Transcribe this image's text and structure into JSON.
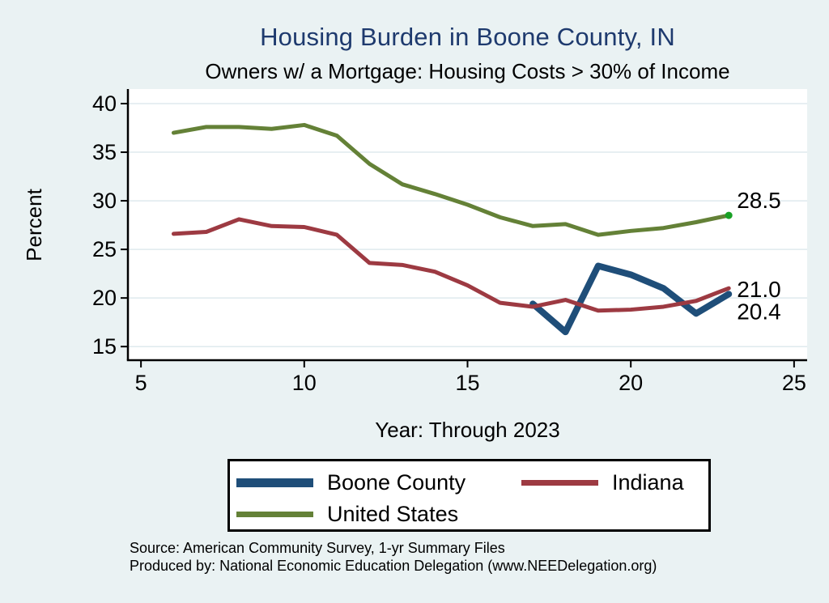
{
  "title": "Housing Burden in Boone County, IN",
  "subtitle": "Owners w/ a Mortgage: Housing Costs > 30% of Income",
  "source": {
    "line1": "Source: American Community Survey, 1-yr Summary Files",
    "line2": "Produced by: National Economic Education Delegation (www.NEEDelegation.org)"
  },
  "colors": {
    "background": "#eaf2f3",
    "plot_bg": "#ffffff",
    "grid": "#dfeaee",
    "axis": "#000000",
    "title": "#1e3a6e",
    "text": "#000000",
    "endpoint_marker": "#18a024"
  },
  "chart_data": {
    "type": "line",
    "title": "Housing Burden in Boone County, IN",
    "subtitle": "Owners w/ a Mortgage: Housing Costs > 30% of Income",
    "xlabel": "Year: Through 2023",
    "ylabel": "Percent",
    "xlim": [
      4.6,
      25.4
    ],
    "ylim": [
      13.6,
      41.5
    ],
    "xticks": [
      5,
      10,
      15,
      20,
      25
    ],
    "yticks": [
      15,
      20,
      25,
      30,
      35,
      40
    ],
    "grid": "horizontal",
    "legend_position": "bottom",
    "x_meaning": "ACS survey year, 6 = 2006 ... 23 = 2023",
    "series": [
      {
        "name": "Boone County",
        "color": "#1f4e79",
        "width": 8,
        "x": [
          17,
          18,
          19,
          20,
          21,
          22,
          23
        ],
        "values": [
          19.4,
          16.5,
          23.3,
          22.4,
          21.0,
          18.4,
          20.4
        ],
        "end_label": "20.4",
        "end_label_dy": 22,
        "end_marker": false
      },
      {
        "name": "Indiana",
        "color": "#9d3a42",
        "width": 5,
        "x": [
          6,
          7,
          8,
          9,
          10,
          11,
          12,
          13,
          14,
          15,
          16,
          17,
          18,
          19,
          20,
          21,
          22,
          23
        ],
        "values": [
          26.6,
          26.8,
          28.1,
          27.4,
          27.3,
          26.5,
          23.6,
          23.4,
          22.7,
          21.3,
          19.5,
          19.1,
          19.8,
          18.7,
          18.8,
          19.1,
          19.7,
          21.0
        ],
        "end_label": "21.0",
        "end_label_dy": 2,
        "end_marker": false
      },
      {
        "name": "United States",
        "color": "#648137",
        "width": 5,
        "x": [
          6,
          7,
          8,
          9,
          10,
          11,
          12,
          13,
          14,
          15,
          16,
          17,
          18,
          19,
          20,
          21,
          22,
          23
        ],
        "values": [
          37.0,
          37.6,
          37.6,
          37.4,
          37.8,
          36.7,
          33.8,
          31.7,
          30.7,
          29.6,
          28.3,
          27.4,
          27.6,
          26.5,
          26.9,
          27.2,
          27.8,
          28.5
        ],
        "end_label": "28.5",
        "end_label_dy": -18,
        "end_marker": true
      }
    ]
  }
}
